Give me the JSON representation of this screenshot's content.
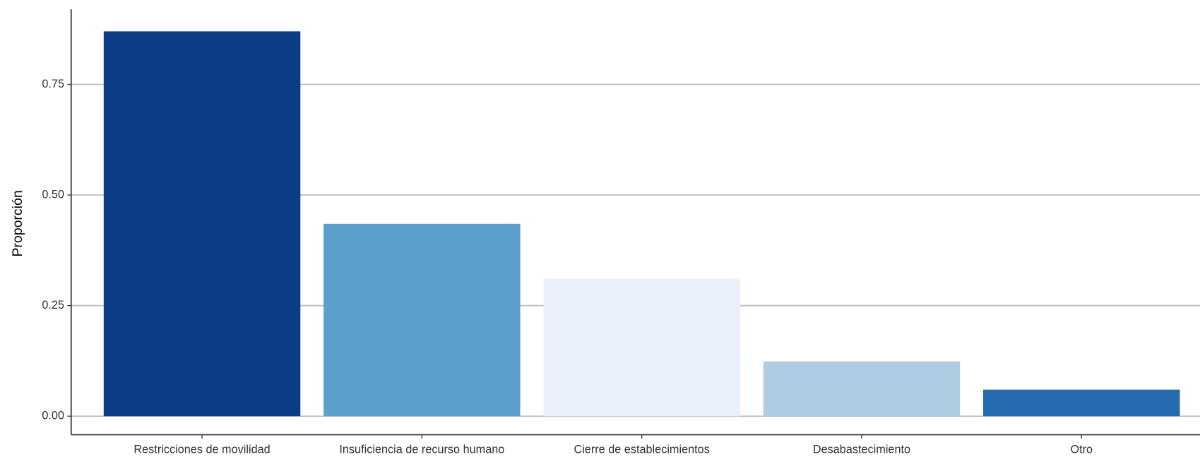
{
  "chart_data": {
    "type": "bar",
    "y_label": "Proporción",
    "categories": [
      "Restricciones de movilidad",
      "Insuficiencia de recurso humano",
      "Cierre de establecimientos",
      "Desabastecimiento",
      "Otro"
    ],
    "values": [
      0.87,
      0.435,
      0.311,
      0.124,
      0.06
    ],
    "colors": [
      "#0c3c86",
      "#5b9fcb",
      "#eaf0fb",
      "#afcde2",
      "#266bb0"
    ],
    "ylim": [
      -0.042,
      0.92
    ],
    "yticks": [
      {
        "value": 0,
        "label": "0.00"
      },
      0.25,
      {
        "value": 0.5,
        "label": "0.50"
      },
      0.75
    ],
    "grid": true
  }
}
